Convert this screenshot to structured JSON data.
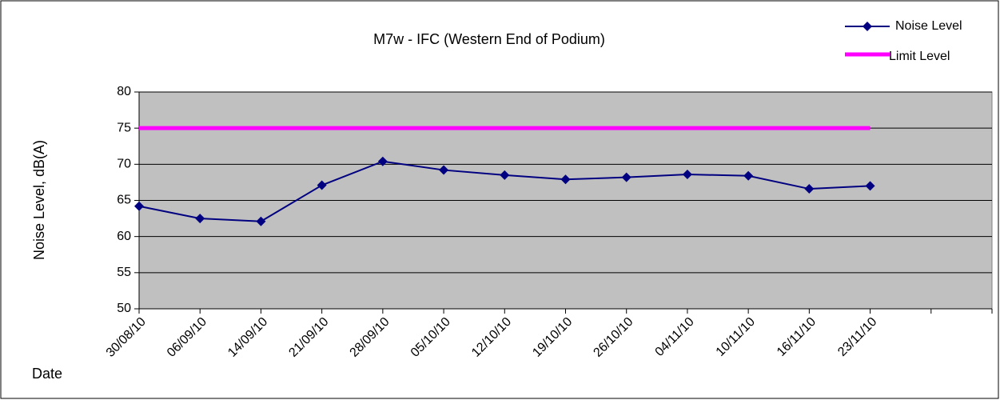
{
  "chart_data": {
    "type": "line",
    "title": "M7w - IFC (Western End of Podium)",
    "xlabel": "Date",
    "ylabel": "Noise Level, dB(A)",
    "categories": [
      "30/08/10",
      "06/09/10",
      "14/09/10",
      "21/09/10",
      "28/09/10",
      "05/10/10",
      "12/10/10",
      "19/10/10",
      "26/10/10",
      "04/11/10",
      "10/11/10",
      "16/11/10",
      "23/11/10",
      null,
      null
    ],
    "series": [
      {
        "name": "Noise Level",
        "color": "#000080",
        "marker": "diamond",
        "width": 2,
        "values": [
          64.2,
          62.5,
          62.1,
          67.1,
          70.4,
          69.2,
          68.5,
          67.9,
          68.2,
          68.6,
          68.4,
          66.6,
          67.0,
          null,
          null
        ]
      },
      {
        "name": "Limit Level",
        "color": "#ff00ff",
        "marker": "none",
        "width": 5,
        "values": [
          75,
          75,
          75,
          75,
          75,
          75,
          75,
          75,
          75,
          75,
          75,
          75,
          75,
          null,
          null
        ]
      }
    ],
    "ylim": [
      50,
      80
    ],
    "yticks": [
      50,
      55,
      60,
      65,
      70,
      75,
      80
    ],
    "grid": true,
    "legend": "top-right"
  }
}
